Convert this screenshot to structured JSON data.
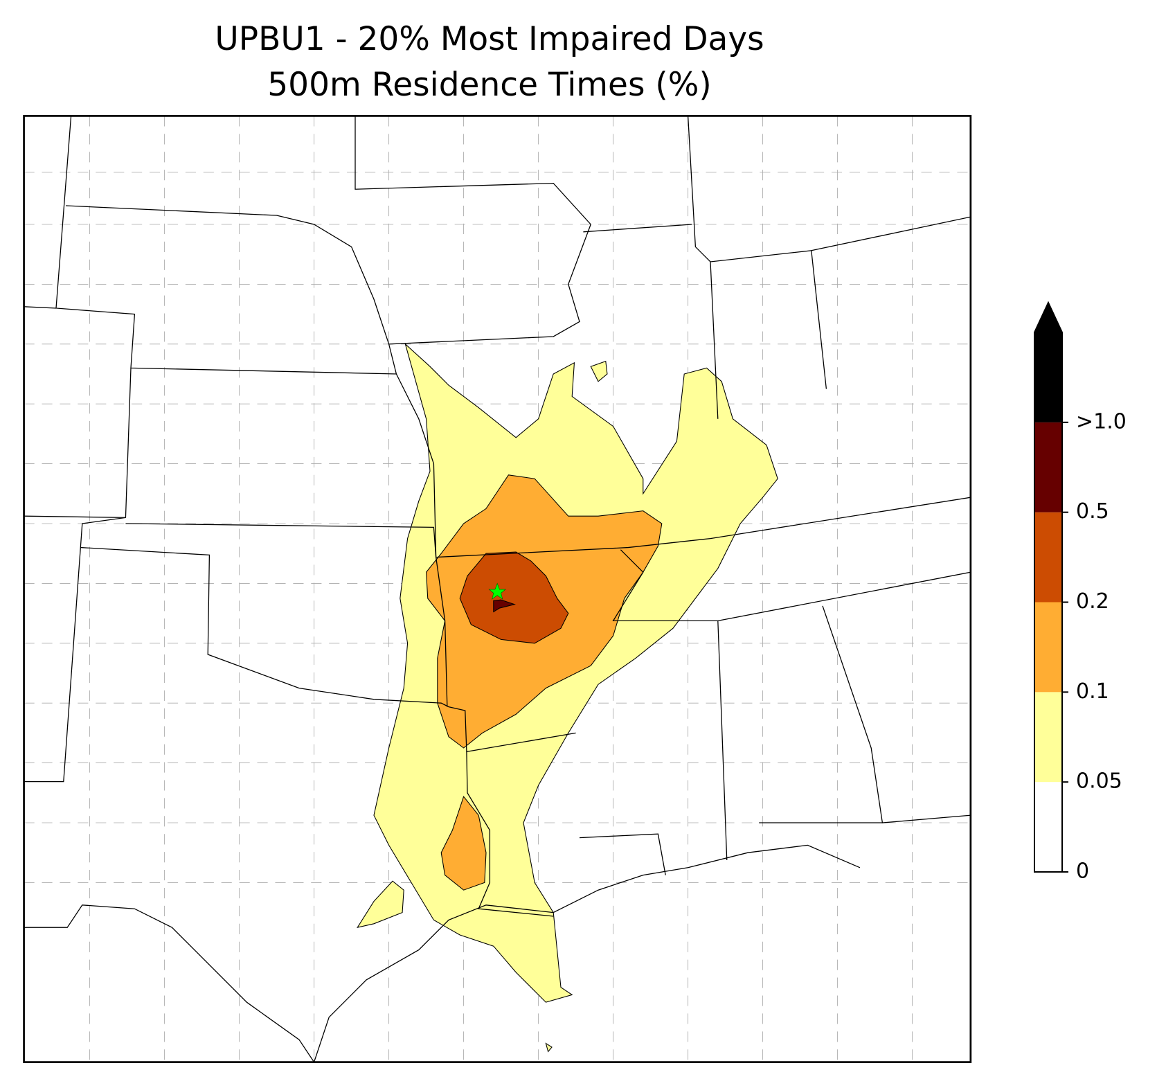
{
  "title": [
    "UPBU1 - 20% Most Impaired Days",
    "500m Residence Times (%)"
  ],
  "colorbar": {
    "ticks": [
      0,
      0.05,
      0.1,
      0.2,
      0.5,
      {
        "value": 1.0,
        "label": ">1.0"
      }
    ],
    "colors": [
      "#ffffff",
      "#ffff99",
      "#ffad33",
      "#cc4c02",
      "#660000",
      "#000000"
    ]
  }
}
